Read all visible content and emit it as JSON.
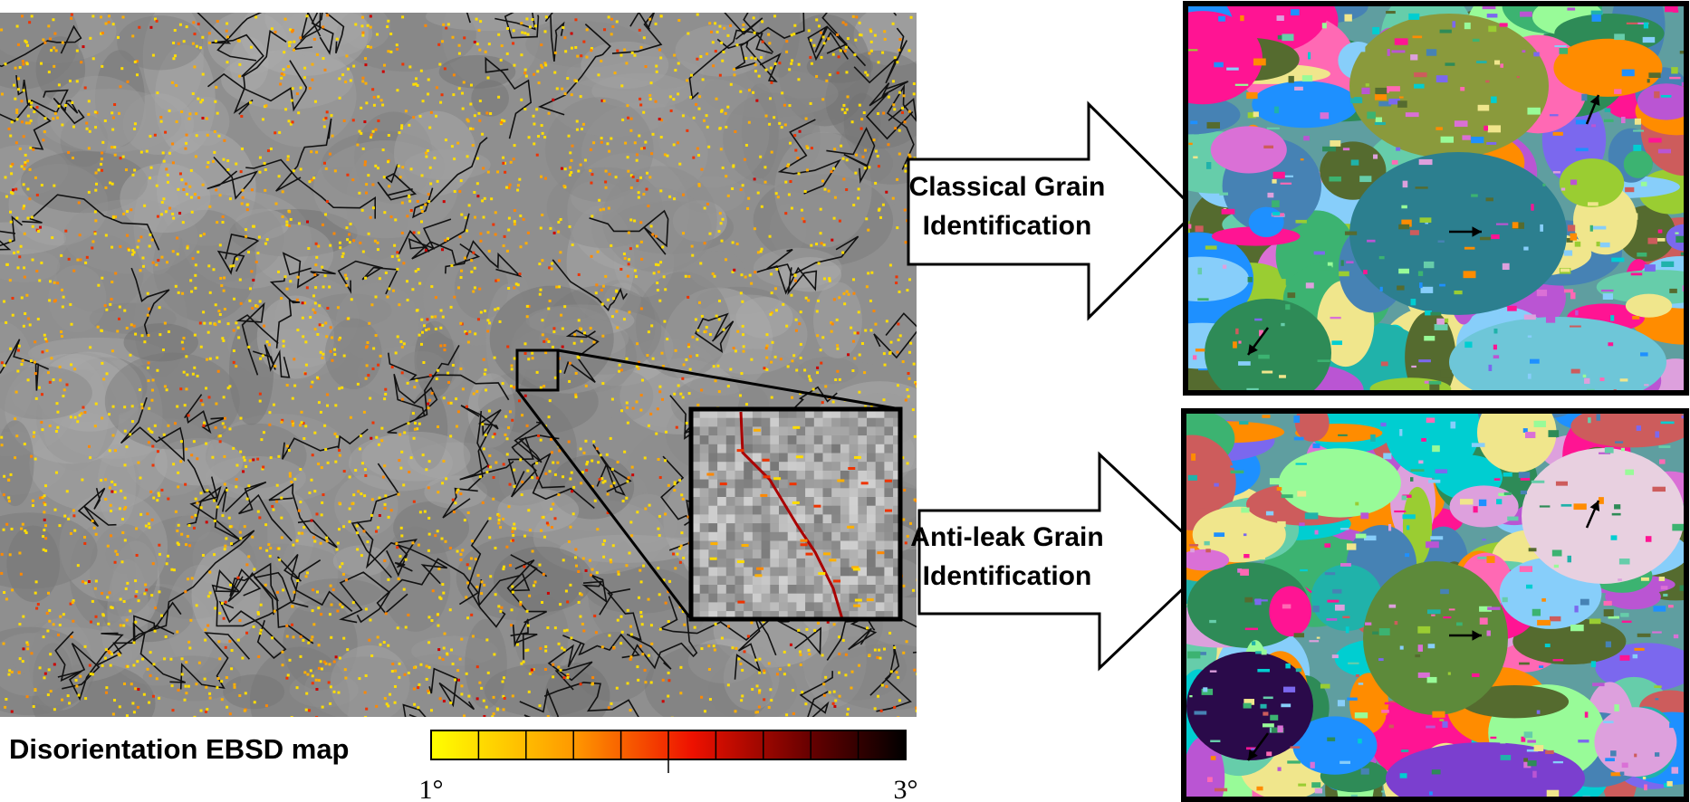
{
  "ebsd_map": {
    "label": "Disorientation EBSD map",
    "colorbar": {
      "min_label": "1°",
      "max_label": "3°"
    }
  },
  "arrows": [
    {
      "label_lines": [
        "Classical Grain",
        "Identification"
      ]
    },
    {
      "label_lines": [
        "Anti-leak Grain",
        "Identification"
      ]
    }
  ]
}
